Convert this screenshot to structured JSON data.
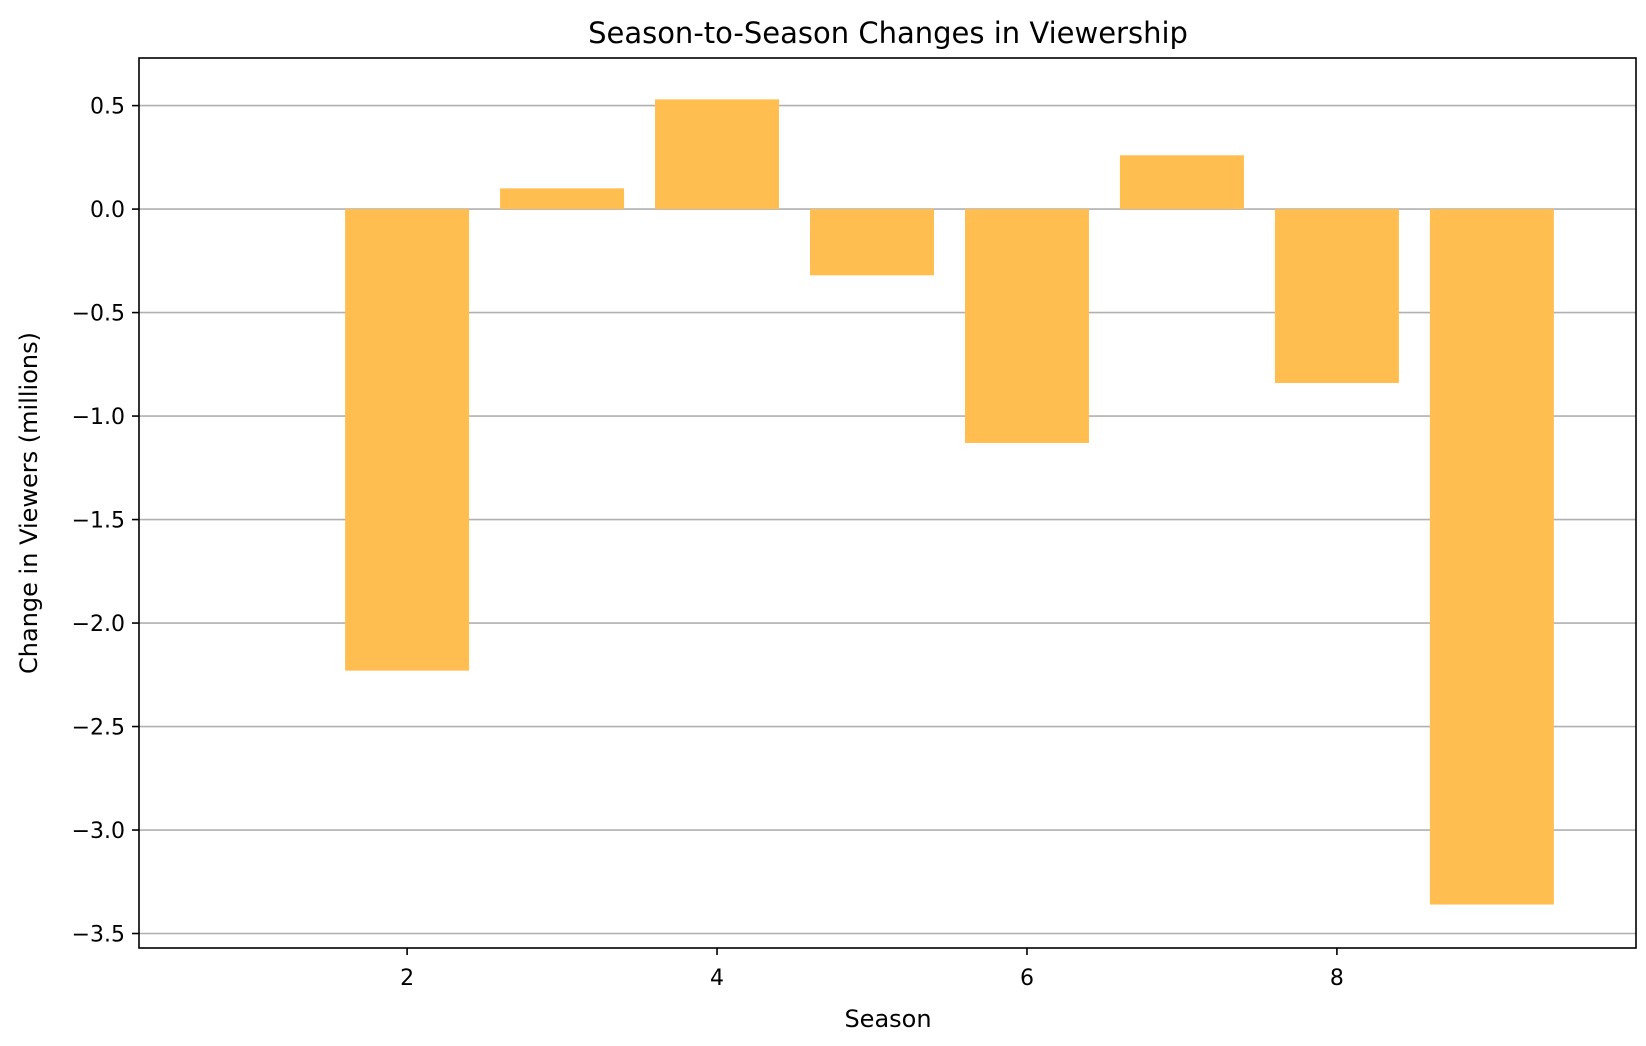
{
  "chart_data": {
    "type": "bar",
    "title": "Season-to-Season Changes in Viewership",
    "xlabel": "Season",
    "ylabel": "Change in Viewers (millions)",
    "categories": [
      2,
      3,
      4,
      5,
      6,
      7,
      8,
      9
    ],
    "values": [
      -2.23,
      0.1,
      0.53,
      -0.32,
      -1.13,
      0.26,
      -0.84,
      -3.36
    ],
    "xlim": [
      0.27,
      9.93
    ],
    "ylim": [
      -3.57,
      0.73
    ],
    "xticks": [
      2,
      4,
      6,
      8
    ],
    "xtick_labels": [
      "2",
      "4",
      "6",
      "8"
    ],
    "yticks": [
      0.5,
      0.0,
      -0.5,
      -1.0,
      -1.5,
      -2.0,
      -2.5,
      -3.0,
      -3.5
    ],
    "ytick_labels": [
      "0.5",
      "0.0",
      "−0.5",
      "−1.0",
      "−1.5",
      "−2.0",
      "−2.5",
      "−3.0",
      "−3.5"
    ],
    "bar_width": 0.8,
    "grid": "horizontal",
    "bar_color": "#ffbe4f",
    "grid_color": "#b0b0b0"
  }
}
